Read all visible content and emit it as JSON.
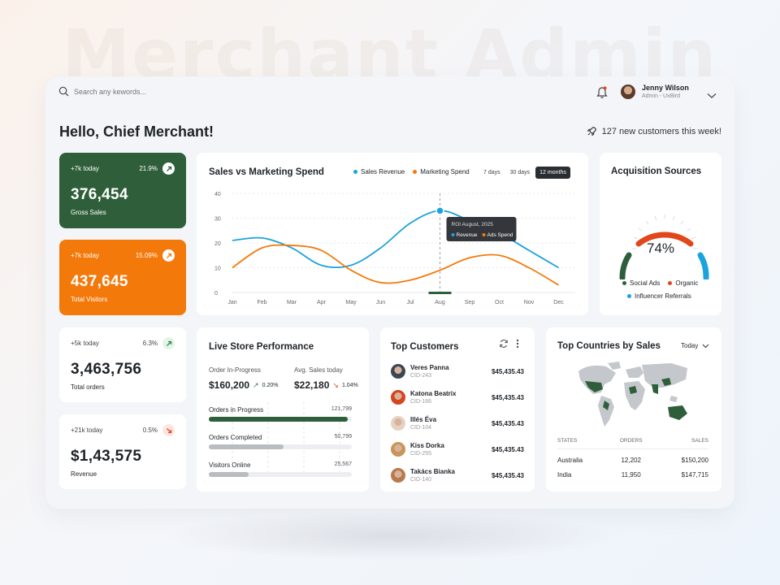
{
  "watermark": "Merchant Admin",
  "colors": {
    "green": "#2f5f3a",
    "orange": "#f4790b",
    "blue": "#1aa3dc",
    "red": "#e2471b",
    "dark": "#2a2d32"
  },
  "header": {
    "search_placeholder": "Search any kewords...",
    "user_name": "Jenny Wilson",
    "user_role": "Admin - UxBird"
  },
  "greeting": "Hello, Chief Merchant!",
  "new_customers": "127 new customers this week!",
  "kpis": [
    {
      "today": "+7k today",
      "pct": "21.9%",
      "value": "376,454",
      "label": "Gross Sales",
      "trend": "up"
    },
    {
      "today": "+7k today",
      "pct": "15.09%",
      "value": "437,645",
      "label": "Total Visitors",
      "trend": "up"
    },
    {
      "today": "+5k today",
      "pct": "6.3%",
      "value": "3,463,756",
      "label": "Total orders",
      "trend": "up"
    },
    {
      "today": "+21k today",
      "pct": "0.5%",
      "value": "$1,43,575",
      "label": "Revenue",
      "trend": "down"
    }
  ],
  "sales_chart": {
    "title": "Sales vs Marketing Spend",
    "legend": [
      "Sales Revenue",
      "Marketing Spend"
    ],
    "tabs": [
      "7 days",
      "30 days",
      "12 months"
    ],
    "active_tab": "12 months",
    "tooltip": {
      "title": "ROI August, 2025",
      "items": [
        "Revenue",
        "Ads Spend"
      ]
    }
  },
  "chart_data": {
    "type": "line",
    "title": "Sales vs Marketing Spend",
    "categories": [
      "Jan",
      "Feb",
      "Mar",
      "Apr",
      "May",
      "Jun",
      "Jul",
      "Aug",
      "Sep",
      "Oct",
      "Nov",
      "Dec"
    ],
    "series": [
      {
        "name": "Sales Revenue",
        "values": [
          21,
          22,
          18,
          11,
          11,
          18,
          28,
          33,
          29,
          24,
          17,
          10
        ]
      },
      {
        "name": "Marketing Spend",
        "values": [
          10,
          18,
          19,
          17,
          9,
          4,
          5,
          9,
          14,
          15,
          10,
          3
        ]
      }
    ],
    "ylim": [
      0,
      40
    ],
    "yticks": [
      0,
      10,
      20,
      30,
      40
    ],
    "highlight_category": "Aug",
    "grid": true
  },
  "acquisition": {
    "title": "Acquisition Sources",
    "value": "74%",
    "legend": [
      "Social Ads",
      "Organic",
      "Influencer Referrals"
    ],
    "fraction": 0.74
  },
  "performance": {
    "title": "Live Store Performance",
    "in_progress_label": "Order In-Progress",
    "in_progress_value": "$160,200",
    "in_progress_pct": "0.20%",
    "avg_label": "Avg. Sales today",
    "avg_value": "$22,180",
    "avg_pct": "1.04%",
    "bars": [
      {
        "label": "Orders in Progress",
        "value": "121,799",
        "fraction": 0.97,
        "color": "#2f5f3a"
      },
      {
        "label": "Orders Completed",
        "value": "50,799",
        "fraction": 0.52,
        "color": "#b9bcc0"
      },
      {
        "label": "Visitors Online",
        "value": "25,567",
        "fraction": 0.28,
        "color": "#b9bcc0"
      }
    ]
  },
  "customers": {
    "title": "Top Customers",
    "rows": [
      {
        "name": "Veres Panna",
        "id": "CID-243",
        "amount": "$45,435.43",
        "avatar": "#3c4756"
      },
      {
        "name": "Katona Beatrix",
        "id": "CID-166",
        "amount": "$45,435.43",
        "avatar": "#d6451e"
      },
      {
        "name": "Illés Éva",
        "id": "CID-104",
        "amount": "$45,435.43",
        "avatar": "#e6d2c2"
      },
      {
        "name": "Kiss Dorka",
        "id": "CID-255",
        "amount": "$45,435.43",
        "avatar": "#c9955b"
      },
      {
        "name": "Takács Bianka",
        "id": "CID-140",
        "amount": "$45,435.43",
        "avatar": "#b77a4e"
      }
    ]
  },
  "countries": {
    "title": "Top Countries by Sales",
    "period": "Today",
    "headers": [
      "STATES",
      "ORDERS",
      "SALES"
    ],
    "rows": [
      {
        "state": "Australia",
        "orders": "12,202",
        "sales": "$150,200"
      },
      {
        "state": "India",
        "orders": "11,950",
        "sales": "$147,715"
      }
    ]
  }
}
